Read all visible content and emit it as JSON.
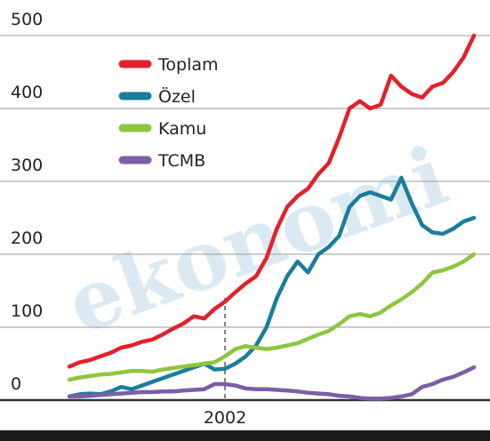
{
  "chart_data": {
    "type": "line",
    "watermark": "ekonomi",
    "categories": [
      null,
      null,
      null,
      null,
      null,
      null,
      null,
      null,
      null,
      null,
      null,
      null,
      null,
      null,
      null,
      "2002",
      null,
      null,
      null,
      null,
      null,
      null,
      null,
      null,
      null,
      null,
      null,
      null,
      null,
      null,
      null,
      null,
      null,
      null,
      null,
      null,
      null,
      null,
      null,
      null
    ],
    "series": [
      {
        "name": "Toplam",
        "color": "#e1222b",
        "values": [
          46,
          52,
          55,
          60,
          65,
          72,
          75,
          80,
          83,
          90,
          98,
          105,
          115,
          112,
          125,
          135,
          148,
          160,
          170,
          195,
          235,
          265,
          280,
          290,
          310,
          325,
          360,
          400,
          410,
          400,
          405,
          445,
          430,
          420,
          415,
          430,
          435,
          450,
          470,
          500
        ]
      },
      {
        "name": "Özel",
        "color": "#1b7d9c",
        "values": [
          5,
          8,
          9,
          8,
          12,
          18,
          15,
          20,
          25,
          30,
          35,
          40,
          45,
          50,
          42,
          43,
          50,
          60,
          75,
          100,
          140,
          170,
          190,
          175,
          200,
          210,
          225,
          265,
          280,
          285,
          280,
          275,
          305,
          270,
          240,
          230,
          228,
          235,
          245,
          250
        ]
      },
      {
        "name": "Kamu",
        "color": "#8dc63f",
        "values": [
          28,
          31,
          33,
          35,
          36,
          38,
          40,
          40,
          39,
          42,
          44,
          46,
          48,
          50,
          52,
          60,
          70,
          74,
          72,
          70,
          72,
          75,
          78,
          84,
          90,
          95,
          104,
          115,
          118,
          115,
          120,
          130,
          138,
          148,
          160,
          175,
          178,
          183,
          190,
          200
        ]
      },
      {
        "name": "TCMB",
        "color": "#7b5ea7",
        "values": [
          5,
          5,
          6,
          7,
          8,
          9,
          10,
          11,
          11,
          12,
          12,
          13,
          14,
          15,
          22,
          22,
          20,
          16,
          15,
          15,
          14,
          13,
          12,
          10,
          9,
          8,
          6,
          5,
          3,
          2,
          2,
          3,
          5,
          8,
          18,
          22,
          28,
          32,
          38,
          45
        ]
      }
    ],
    "ylim": [
      0,
      500
    ],
    "yticks": [
      0,
      100,
      200,
      300,
      400,
      500
    ],
    "grid": true
  }
}
